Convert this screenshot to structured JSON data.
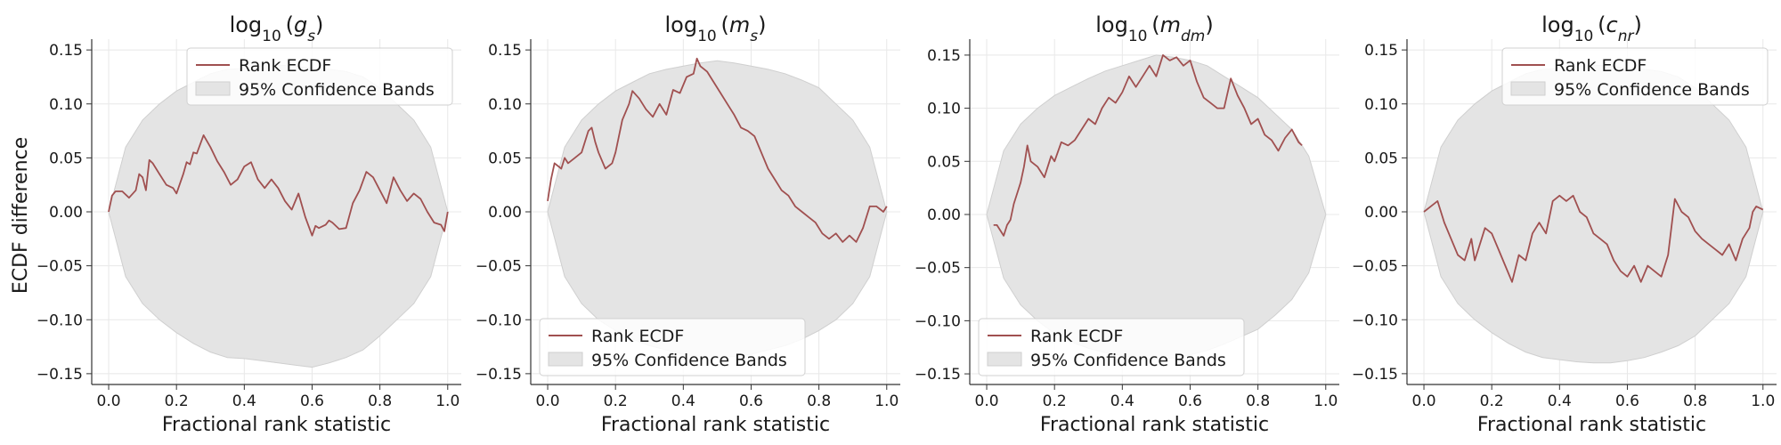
{
  "figure": {
    "ylabel": "ECDF difference"
  },
  "legend": {
    "ecdf_label": "Rank ECDF",
    "band_label": "95% Confidence Bands"
  },
  "colors": {
    "ecdf_line": "#a05050",
    "band_fill": "#e4e4e4",
    "band_edge": "#cfcfcf",
    "grid": "#e8e8e8",
    "axis": "#333333"
  },
  "chart_data": [
    {
      "type": "line",
      "title": "log10 (g_s)",
      "title_main": "log",
      "title_sub": "10",
      "title_var": "g",
      "title_var_sub": "s",
      "xlabel": "Fractional rank statistic",
      "ylabel": "ECDF difference",
      "xlim": [
        -0.05,
        1.04
      ],
      "ylim": [
        -0.16,
        0.16
      ],
      "xticks": [
        0.0,
        0.2,
        0.4,
        0.6,
        0.8,
        1.0
      ],
      "xtick_labels": [
        "0.0",
        "0.2",
        "0.4",
        "0.6",
        "0.8",
        "1.0"
      ],
      "yticks": [
        -0.15,
        -0.1,
        -0.05,
        0.0,
        0.05,
        0.1,
        0.15
      ],
      "ytick_labels": [
        "−0.15",
        "−0.10",
        "−0.05",
        "0.00",
        "0.05",
        "0.10",
        "0.15"
      ],
      "grid": true,
      "legend_position": "top-right",
      "series": [
        {
          "name": "Rank ECDF",
          "x": [
            0.0,
            0.01,
            0.02,
            0.04,
            0.06,
            0.08,
            0.09,
            0.1,
            0.11,
            0.12,
            0.13,
            0.15,
            0.17,
            0.19,
            0.2,
            0.22,
            0.23,
            0.24,
            0.25,
            0.26,
            0.28,
            0.3,
            0.32,
            0.34,
            0.36,
            0.38,
            0.4,
            0.42,
            0.44,
            0.46,
            0.48,
            0.5,
            0.52,
            0.54,
            0.56,
            0.58,
            0.6,
            0.61,
            0.62,
            0.64,
            0.65,
            0.66,
            0.68,
            0.7,
            0.72,
            0.74,
            0.76,
            0.78,
            0.8,
            0.82,
            0.84,
            0.86,
            0.88,
            0.9,
            0.92,
            0.94,
            0.96,
            0.98,
            0.99,
            1.0
          ],
          "y": [
            0.0,
            0.015,
            0.019,
            0.019,
            0.013,
            0.02,
            0.035,
            0.032,
            0.02,
            0.048,
            0.045,
            0.035,
            0.025,
            0.022,
            0.017,
            0.035,
            0.046,
            0.044,
            0.055,
            0.054,
            0.071,
            0.06,
            0.047,
            0.037,
            0.025,
            0.03,
            0.042,
            0.046,
            0.03,
            0.022,
            0.03,
            0.022,
            0.01,
            0.002,
            0.017,
            -0.005,
            -0.022,
            -0.013,
            -0.015,
            -0.012,
            -0.008,
            -0.01,
            -0.016,
            -0.015,
            0.008,
            0.02,
            0.037,
            0.032,
            0.02,
            0.008,
            0.032,
            0.02,
            0.01,
            0.017,
            0.012,
            0.0,
            -0.01,
            -0.012,
            -0.018,
            0.0
          ]
        }
      ],
      "band": {
        "name": "95% Confidence Bands",
        "x": [
          0.0,
          0.05,
          0.1,
          0.15,
          0.2,
          0.25,
          0.3,
          0.35,
          0.4,
          0.45,
          0.5,
          0.55,
          0.6,
          0.65,
          0.7,
          0.75,
          0.8,
          0.85,
          0.9,
          0.95,
          1.0
        ],
        "upper": [
          0.0,
          0.06,
          0.085,
          0.1,
          0.112,
          0.12,
          0.128,
          0.132,
          0.133,
          0.135,
          0.136,
          0.135,
          0.133,
          0.132,
          0.13,
          0.125,
          0.115,
          0.1,
          0.085,
          0.06,
          0.0
        ],
        "lower": [
          0.0,
          -0.06,
          -0.085,
          -0.1,
          -0.112,
          -0.122,
          -0.13,
          -0.135,
          -0.136,
          -0.138,
          -0.14,
          -0.142,
          -0.144,
          -0.14,
          -0.135,
          -0.128,
          -0.115,
          -0.1,
          -0.085,
          -0.06,
          0.0
        ]
      }
    },
    {
      "type": "line",
      "title": "log10 (m_s)",
      "title_main": "log",
      "title_sub": "10",
      "title_var": "m",
      "title_var_sub": "s",
      "xlabel": "Fractional rank statistic",
      "ylabel": "",
      "xlim": [
        -0.05,
        1.04
      ],
      "ylim": [
        -0.16,
        0.16
      ],
      "xticks": [
        0.0,
        0.2,
        0.4,
        0.6,
        0.8,
        1.0
      ],
      "xtick_labels": [
        "0.0",
        "0.2",
        "0.4",
        "0.6",
        "0.8",
        "1.0"
      ],
      "yticks": [
        -0.15,
        -0.1,
        -0.05,
        0.0,
        0.05,
        0.1,
        0.15
      ],
      "ytick_labels": [
        "−0.15",
        "−0.10",
        "−0.05",
        "0.00",
        "0.05",
        "0.10",
        "0.15"
      ],
      "grid": true,
      "legend_position": "bottom-left",
      "series": [
        {
          "name": "Rank ECDF",
          "x": [
            0.0,
            0.01,
            0.02,
            0.04,
            0.05,
            0.06,
            0.08,
            0.1,
            0.12,
            0.13,
            0.14,
            0.15,
            0.17,
            0.19,
            0.2,
            0.22,
            0.24,
            0.25,
            0.27,
            0.29,
            0.31,
            0.33,
            0.35,
            0.37,
            0.39,
            0.41,
            0.43,
            0.44,
            0.45,
            0.47,
            0.49,
            0.51,
            0.53,
            0.55,
            0.57,
            0.59,
            0.61,
            0.63,
            0.65,
            0.67,
            0.69,
            0.71,
            0.73,
            0.75,
            0.77,
            0.79,
            0.81,
            0.83,
            0.85,
            0.87,
            0.89,
            0.91,
            0.93,
            0.95,
            0.97,
            0.99,
            1.0
          ],
          "y": [
            0.01,
            0.03,
            0.045,
            0.04,
            0.05,
            0.045,
            0.05,
            0.055,
            0.075,
            0.078,
            0.065,
            0.055,
            0.04,
            0.045,
            0.055,
            0.085,
            0.1,
            0.112,
            0.105,
            0.095,
            0.088,
            0.1,
            0.09,
            0.113,
            0.11,
            0.125,
            0.128,
            0.142,
            0.135,
            0.13,
            0.12,
            0.11,
            0.1,
            0.09,
            0.078,
            0.075,
            0.07,
            0.055,
            0.04,
            0.03,
            0.02,
            0.015,
            0.005,
            0.0,
            -0.005,
            -0.01,
            -0.02,
            -0.025,
            -0.02,
            -0.028,
            -0.022,
            -0.028,
            -0.015,
            0.005,
            0.005,
            0.0,
            0.005
          ]
        }
      ],
      "band": {
        "name": "95% Confidence Bands",
        "x": [
          0.0,
          0.05,
          0.1,
          0.15,
          0.2,
          0.25,
          0.3,
          0.35,
          0.4,
          0.45,
          0.5,
          0.55,
          0.6,
          0.65,
          0.7,
          0.75,
          0.8,
          0.85,
          0.9,
          0.95,
          1.0
        ],
        "upper": [
          0.0,
          0.06,
          0.085,
          0.1,
          0.112,
          0.12,
          0.128,
          0.132,
          0.135,
          0.138,
          0.14,
          0.138,
          0.135,
          0.132,
          0.128,
          0.122,
          0.115,
          0.1,
          0.085,
          0.06,
          0.0
        ],
        "lower": [
          0.0,
          -0.06,
          -0.085,
          -0.1,
          -0.11,
          -0.118,
          -0.124,
          -0.128,
          -0.132,
          -0.134,
          -0.135,
          -0.134,
          -0.132,
          -0.128,
          -0.124,
          -0.118,
          -0.11,
          -0.1,
          -0.085,
          -0.06,
          0.0
        ]
      }
    },
    {
      "type": "line",
      "title": "log10 (m_dm)",
      "title_main": "log",
      "title_sub": "10",
      "title_var": "m",
      "title_var_sub": "dm",
      "xlabel": "Fractional rank statistic",
      "ylabel": "",
      "xlim": [
        -0.05,
        1.04
      ],
      "ylim": [
        -0.16,
        0.165
      ],
      "xticks": [
        0.0,
        0.2,
        0.4,
        0.6,
        0.8,
        1.0
      ],
      "xtick_labels": [
        "0.0",
        "0.2",
        "0.4",
        "0.6",
        "0.8",
        "1.0"
      ],
      "yticks": [
        -0.15,
        -0.1,
        -0.05,
        0.0,
        0.05,
        0.1,
        0.15
      ],
      "ytick_labels": [
        "−0.15",
        "−0.10",
        "−0.05",
        "0.00",
        "0.05",
        "0.10",
        "0.15"
      ],
      "grid": true,
      "legend_position": "bottom-left",
      "series": [
        {
          "name": "Rank ECDF",
          "x": [
            0.02,
            0.03,
            0.04,
            0.05,
            0.06,
            0.07,
            0.08,
            0.09,
            0.1,
            0.11,
            0.12,
            0.13,
            0.15,
            0.17,
            0.19,
            0.2,
            0.22,
            0.24,
            0.26,
            0.28,
            0.3,
            0.32,
            0.34,
            0.36,
            0.38,
            0.4,
            0.42,
            0.44,
            0.46,
            0.48,
            0.5,
            0.52,
            0.54,
            0.56,
            0.58,
            0.6,
            0.62,
            0.64,
            0.66,
            0.68,
            0.7,
            0.72,
            0.74,
            0.76,
            0.78,
            0.8,
            0.82,
            0.84,
            0.86,
            0.88,
            0.9,
            0.92,
            0.93
          ],
          "y": [
            -0.01,
            -0.01,
            -0.015,
            -0.02,
            -0.01,
            -0.005,
            0.01,
            0.02,
            0.03,
            0.045,
            0.065,
            0.05,
            0.045,
            0.035,
            0.055,
            0.05,
            0.068,
            0.065,
            0.07,
            0.08,
            0.09,
            0.085,
            0.1,
            0.11,
            0.105,
            0.115,
            0.13,
            0.12,
            0.13,
            0.14,
            0.13,
            0.15,
            0.145,
            0.148,
            0.14,
            0.145,
            0.125,
            0.11,
            0.105,
            0.1,
            0.1,
            0.128,
            0.112,
            0.1,
            0.085,
            0.09,
            0.075,
            0.07,
            0.06,
            0.072,
            0.08,
            0.068,
            0.065
          ]
        }
      ],
      "band": {
        "name": "95% Confidence Bands",
        "x": [
          0.0,
          0.05,
          0.1,
          0.15,
          0.2,
          0.25,
          0.3,
          0.35,
          0.4,
          0.45,
          0.5,
          0.55,
          0.6,
          0.65,
          0.7,
          0.75,
          0.8,
          0.85,
          0.9,
          0.95,
          1.0
        ],
        "upper": [
          0.0,
          0.06,
          0.085,
          0.1,
          0.112,
          0.12,
          0.128,
          0.135,
          0.14,
          0.145,
          0.15,
          0.148,
          0.145,
          0.14,
          0.13,
          0.12,
          0.11,
          0.095,
          0.08,
          0.055,
          0.0
        ],
        "lower": [
          0.0,
          -0.06,
          -0.085,
          -0.1,
          -0.112,
          -0.12,
          -0.126,
          -0.13,
          -0.133,
          -0.135,
          -0.136,
          -0.135,
          -0.132,
          -0.128,
          -0.122,
          -0.115,
          -0.108,
          -0.095,
          -0.08,
          -0.055,
          0.0
        ]
      }
    },
    {
      "type": "line",
      "title": "log10 (c_nr)",
      "title_main": "log",
      "title_sub": "10",
      "title_var": "c",
      "title_var_sub": "nr",
      "xlabel": "Fractional rank statistic",
      "ylabel": "",
      "xlim": [
        -0.05,
        1.04
      ],
      "ylim": [
        -0.16,
        0.16
      ],
      "xticks": [
        0.0,
        0.2,
        0.4,
        0.6,
        0.8,
        1.0
      ],
      "xtick_labels": [
        "0.0",
        "0.2",
        "0.4",
        "0.6",
        "0.8",
        "1.0"
      ],
      "yticks": [
        -0.15,
        -0.1,
        -0.05,
        0.0,
        0.05,
        0.1,
        0.15
      ],
      "ytick_labels": [
        "−0.15",
        "−0.10",
        "−0.05",
        "0.00",
        "0.05",
        "0.10",
        "0.15"
      ],
      "grid": true,
      "legend_position": "top-right",
      "series": [
        {
          "name": "Rank ECDF",
          "x": [
            0.0,
            0.02,
            0.04,
            0.05,
            0.06,
            0.08,
            0.1,
            0.12,
            0.14,
            0.15,
            0.16,
            0.18,
            0.2,
            0.22,
            0.24,
            0.26,
            0.28,
            0.3,
            0.32,
            0.34,
            0.36,
            0.38,
            0.4,
            0.42,
            0.44,
            0.46,
            0.48,
            0.5,
            0.52,
            0.54,
            0.56,
            0.58,
            0.6,
            0.62,
            0.64,
            0.66,
            0.68,
            0.7,
            0.72,
            0.74,
            0.76,
            0.78,
            0.8,
            0.82,
            0.84,
            0.86,
            0.88,
            0.9,
            0.92,
            0.94,
            0.96,
            0.97,
            0.98,
            1.0
          ],
          "y": [
            0.0,
            0.005,
            0.01,
            0.0,
            -0.01,
            -0.025,
            -0.04,
            -0.045,
            -0.025,
            -0.045,
            -0.035,
            -0.015,
            -0.02,
            -0.035,
            -0.05,
            -0.065,
            -0.04,
            -0.045,
            -0.02,
            -0.01,
            -0.02,
            0.01,
            0.015,
            0.01,
            0.015,
            0.0,
            -0.005,
            -0.02,
            -0.025,
            -0.03,
            -0.045,
            -0.055,
            -0.06,
            -0.05,
            -0.065,
            -0.05,
            -0.055,
            -0.06,
            -0.04,
            0.012,
            0.0,
            -0.005,
            -0.018,
            -0.025,
            -0.03,
            -0.035,
            -0.04,
            -0.03,
            -0.045,
            -0.025,
            -0.015,
            0.0,
            0.005,
            0.002
          ]
        }
      ],
      "band": {
        "name": "95% Confidence Bands",
        "x": [
          0.0,
          0.05,
          0.1,
          0.15,
          0.2,
          0.25,
          0.3,
          0.35,
          0.4,
          0.45,
          0.5,
          0.55,
          0.6,
          0.65,
          0.7,
          0.75,
          0.8,
          0.85,
          0.9,
          0.95,
          1.0
        ],
        "upper": [
          0.0,
          0.06,
          0.085,
          0.1,
          0.112,
          0.12,
          0.128,
          0.132,
          0.133,
          0.135,
          0.136,
          0.135,
          0.133,
          0.132,
          0.13,
          0.125,
          0.115,
          0.1,
          0.085,
          0.06,
          0.0
        ],
        "lower": [
          0.0,
          -0.06,
          -0.085,
          -0.1,
          -0.112,
          -0.122,
          -0.13,
          -0.135,
          -0.137,
          -0.139,
          -0.14,
          -0.14,
          -0.138,
          -0.135,
          -0.13,
          -0.124,
          -0.115,
          -0.1,
          -0.085,
          -0.06,
          0.0
        ]
      }
    }
  ]
}
